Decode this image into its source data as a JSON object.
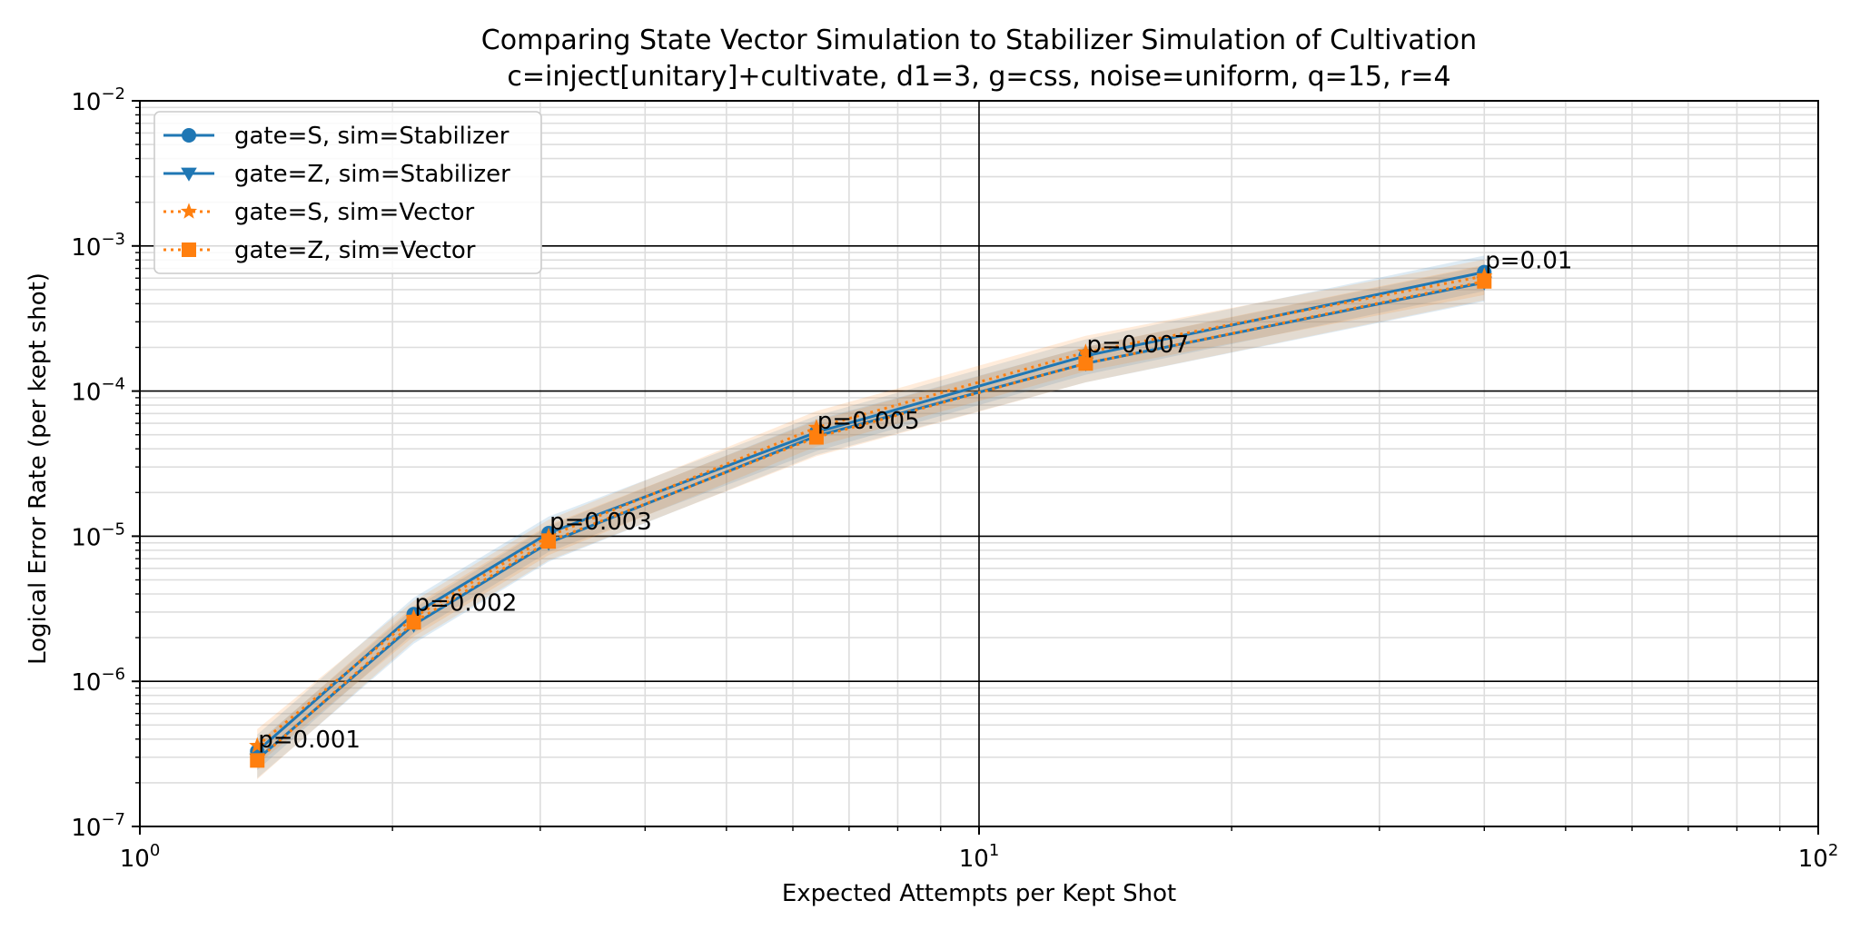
{
  "chart_data": {
    "type": "line",
    "title": "Comparing State Vector Simulation to Stabilizer Simulation of Cultivation",
    "subtitle": "c=inject[unitary]+cultivate, d1=3, g=css, noise=uniform, q=15, r=4",
    "xlabel": "Expected Attempts per Kept Shot",
    "ylabel": "Logical Error Rate (per kept shot)",
    "xscale": "log",
    "yscale": "log",
    "xlim": [
      1,
      100
    ],
    "ylim": [
      1e-07,
      0.01
    ],
    "x_ticks": [
      {
        "value": 1,
        "base": "10",
        "exp": "0"
      },
      {
        "value": 10,
        "base": "10",
        "exp": "1"
      },
      {
        "value": 100,
        "base": "10",
        "exp": "2"
      }
    ],
    "y_ticks": [
      {
        "value": 0.01,
        "base": "10",
        "exp": "−2"
      },
      {
        "value": 0.001,
        "base": "10",
        "exp": "−3"
      },
      {
        "value": 0.0001,
        "base": "10",
        "exp": "−4"
      },
      {
        "value": 1e-05,
        "base": "10",
        "exp": "−5"
      },
      {
        "value": 1e-06,
        "base": "10",
        "exp": "−6"
      },
      {
        "value": 1e-07,
        "base": "10",
        "exp": "−7"
      }
    ],
    "grid": true,
    "legend_position": "top-left",
    "series": [
      {
        "name": "gate=S, sim=Stabilizer",
        "color": "#1f77b4",
        "linestyle": "solid",
        "marker": "circle",
        "x": [
          1.38,
          2.12,
          3.07,
          6.4,
          13.4,
          40.0
        ],
        "y": [
          3.3e-07,
          2.9e-06,
          1.05e-05,
          5.2e-05,
          0.000175,
          0.00066
        ]
      },
      {
        "name": "gate=Z, sim=Stabilizer",
        "color": "#1f77b4",
        "linestyle": "solid",
        "marker": "triangle-down",
        "x": [
          1.38,
          2.12,
          3.07,
          6.4,
          13.4,
          40.0
        ],
        "y": [
          2.9e-07,
          2.45e-06,
          9e-06,
          4.9e-05,
          0.000155,
          0.00056
        ]
      },
      {
        "name": "gate=S, sim=Vector",
        "color": "#ff7f0e",
        "linestyle": "dotted",
        "marker": "star",
        "x": [
          1.38,
          2.12,
          3.07,
          6.4,
          13.4,
          40.0
        ],
        "y": [
          3.6e-07,
          2.75e-06,
          1e-05,
          5.6e-05,
          0.000185,
          0.00062
        ]
      },
      {
        "name": "gate=Z, sim=Vector",
        "color": "#ff7f0e",
        "linestyle": "dotted",
        "marker": "square",
        "x": [
          1.38,
          2.12,
          3.07,
          6.4,
          13.4,
          40.0
        ],
        "y": [
          2.85e-07,
          2.55e-06,
          9.2e-06,
          4.8e-05,
          0.000155,
          0.00057
        ]
      }
    ],
    "annotations": [
      {
        "x": 1.38,
        "y": 3.3e-07,
        "text": "p=0.001"
      },
      {
        "x": 2.12,
        "y": 2.9e-06,
        "text": "p=0.002"
      },
      {
        "x": 3.07,
        "y": 1.05e-05,
        "text": "p=0.003"
      },
      {
        "x": 6.4,
        "y": 5.2e-05,
        "text": "p=0.005"
      },
      {
        "x": 13.4,
        "y": 0.000175,
        "text": "p=0.007"
      },
      {
        "x": 40.0,
        "y": 0.00066,
        "text": "p=0.01"
      }
    ]
  }
}
